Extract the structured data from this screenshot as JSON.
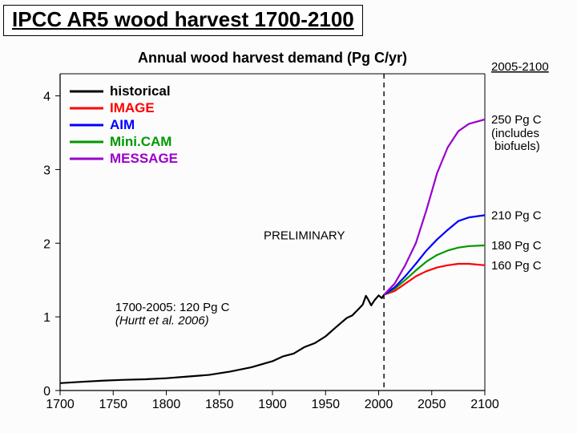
{
  "page_title": "IPCC AR5 wood harvest 1700-2100",
  "chart": {
    "type": "line",
    "title": "Annual wood harvest demand (Pg C/yr)",
    "title_fontsize": 18,
    "xlim": [
      1700,
      2100
    ],
    "ylim": [
      0,
      4.3
    ],
    "xticks": [
      1700,
      1750,
      1800,
      1850,
      1900,
      1950,
      2000,
      2050,
      2100
    ],
    "yticks": [
      0,
      1,
      2,
      3,
      4
    ],
    "background_color": "#fcfcfc",
    "axis_color": "#000000",
    "separator_x": 2005,
    "separator_style": "dashed",
    "line_width": 2.2,
    "legend": {
      "position": "top-left-inside",
      "items": [
        {
          "label": "historical",
          "color": "#000000"
        },
        {
          "label": "IMAGE",
          "color": "#ff0000"
        },
        {
          "label": "AIM",
          "color": "#0000ff"
        },
        {
          "label": "Mini.CAM",
          "color": "#009900"
        },
        {
          "label": "MESSAGE",
          "color": "#9900cc"
        }
      ]
    },
    "series": {
      "historical": {
        "color": "#000000",
        "points": [
          [
            1700,
            0.1
          ],
          [
            1720,
            0.11
          ],
          [
            1740,
            0.12
          ],
          [
            1760,
            0.13
          ],
          [
            1780,
            0.14
          ],
          [
            1800,
            0.16
          ],
          [
            1820,
            0.19
          ],
          [
            1840,
            0.22
          ],
          [
            1860,
            0.27
          ],
          [
            1880,
            0.33
          ],
          [
            1900,
            0.41
          ],
          [
            1910,
            0.47
          ],
          [
            1920,
            0.5
          ],
          [
            1930,
            0.58
          ],
          [
            1940,
            0.63
          ],
          [
            1950,
            0.72
          ],
          [
            1960,
            0.85
          ],
          [
            1970,
            0.98
          ],
          [
            1975,
            1.02
          ],
          [
            1980,
            1.1
          ],
          [
            1985,
            1.18
          ],
          [
            1988,
            1.3
          ],
          [
            1990,
            1.25
          ],
          [
            1993,
            1.16
          ],
          [
            1996,
            1.22
          ],
          [
            2000,
            1.28
          ],
          [
            2003,
            1.24
          ],
          [
            2005,
            1.3
          ]
        ]
      },
      "IMAGE": {
        "color": "#ff0000",
        "points": [
          [
            2005,
            1.3
          ],
          [
            2015,
            1.35
          ],
          [
            2025,
            1.45
          ],
          [
            2035,
            1.55
          ],
          [
            2045,
            1.62
          ],
          [
            2055,
            1.67
          ],
          [
            2065,
            1.7
          ],
          [
            2075,
            1.72
          ],
          [
            2085,
            1.72
          ],
          [
            2100,
            1.7
          ]
        ]
      },
      "AIM": {
        "color": "#0000ff",
        "points": [
          [
            2005,
            1.3
          ],
          [
            2015,
            1.4
          ],
          [
            2025,
            1.55
          ],
          [
            2035,
            1.72
          ],
          [
            2045,
            1.9
          ],
          [
            2055,
            2.05
          ],
          [
            2065,
            2.18
          ],
          [
            2075,
            2.3
          ],
          [
            2085,
            2.35
          ],
          [
            2100,
            2.38
          ]
        ]
      },
      "MiniCAM": {
        "color": "#009900",
        "points": [
          [
            2005,
            1.3
          ],
          [
            2015,
            1.38
          ],
          [
            2025,
            1.5
          ],
          [
            2035,
            1.63
          ],
          [
            2045,
            1.75
          ],
          [
            2055,
            1.84
          ],
          [
            2065,
            1.9
          ],
          [
            2075,
            1.94
          ],
          [
            2085,
            1.96
          ],
          [
            2100,
            1.97
          ]
        ]
      },
      "MESSAGE": {
        "color": "#9900cc",
        "points": [
          [
            2005,
            1.3
          ],
          [
            2015,
            1.45
          ],
          [
            2025,
            1.7
          ],
          [
            2035,
            2.0
          ],
          [
            2045,
            2.45
          ],
          [
            2055,
            2.95
          ],
          [
            2065,
            3.3
          ],
          [
            2075,
            3.52
          ],
          [
            2085,
            3.62
          ],
          [
            2100,
            3.68
          ]
        ]
      }
    },
    "annotations": {
      "top_right_header": "2005-2100",
      "right_labels": [
        {
          "text": "250 Pg C",
          "y_value": 3.68,
          "color": "#000000",
          "sub": "(includes biofuels)"
        },
        {
          "text": "210 Pg C",
          "y_value": 2.38,
          "color": "#000000"
        },
        {
          "text": "180 Pg C",
          "y_value": 1.97,
          "color": "#000000"
        },
        {
          "text": "160 Pg C",
          "y_value": 1.7,
          "color": "#000000"
        }
      ],
      "preliminary": "PRELIMINARY",
      "bottom_left_note_line1": "1700-2005: 120 Pg C",
      "bottom_left_note_line2": "(Hurtt et al. 2006)"
    }
  }
}
